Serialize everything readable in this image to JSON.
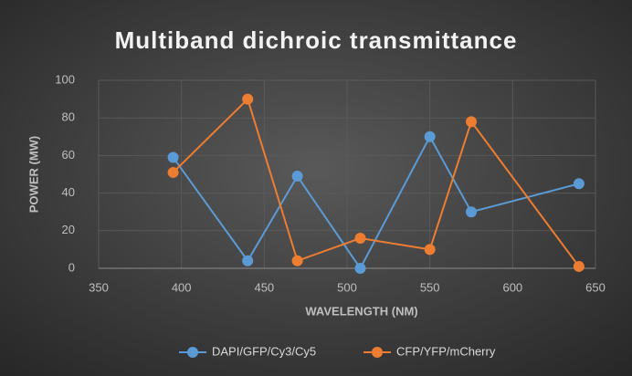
{
  "chart_data": {
    "type": "line",
    "title": "Multiband dichroic transmittance",
    "x_label": "WAVELENGTH (NM)",
    "y_label": "POWER (MW)",
    "x": [
      395,
      440,
      470,
      508,
      550,
      575,
      640
    ],
    "series": [
      {
        "name": "DAPI/GFP/Cy3/Cy5",
        "color": "#5b9bd5",
        "values": [
          59,
          4,
          49,
          0,
          70,
          30,
          45
        ]
      },
      {
        "name": "CFP/YFP/mCherry",
        "color": "#ed7d31",
        "values": [
          51,
          90,
          4,
          16,
          10,
          78,
          1
        ]
      }
    ],
    "xlim": [
      350,
      650
    ],
    "xticks": [
      350,
      400,
      450,
      500,
      550,
      600,
      650
    ],
    "ylim": [
      0,
      100
    ],
    "yticks": [
      0,
      20,
      40,
      60,
      80,
      100
    ],
    "grid": true,
    "legend": "bottom"
  }
}
